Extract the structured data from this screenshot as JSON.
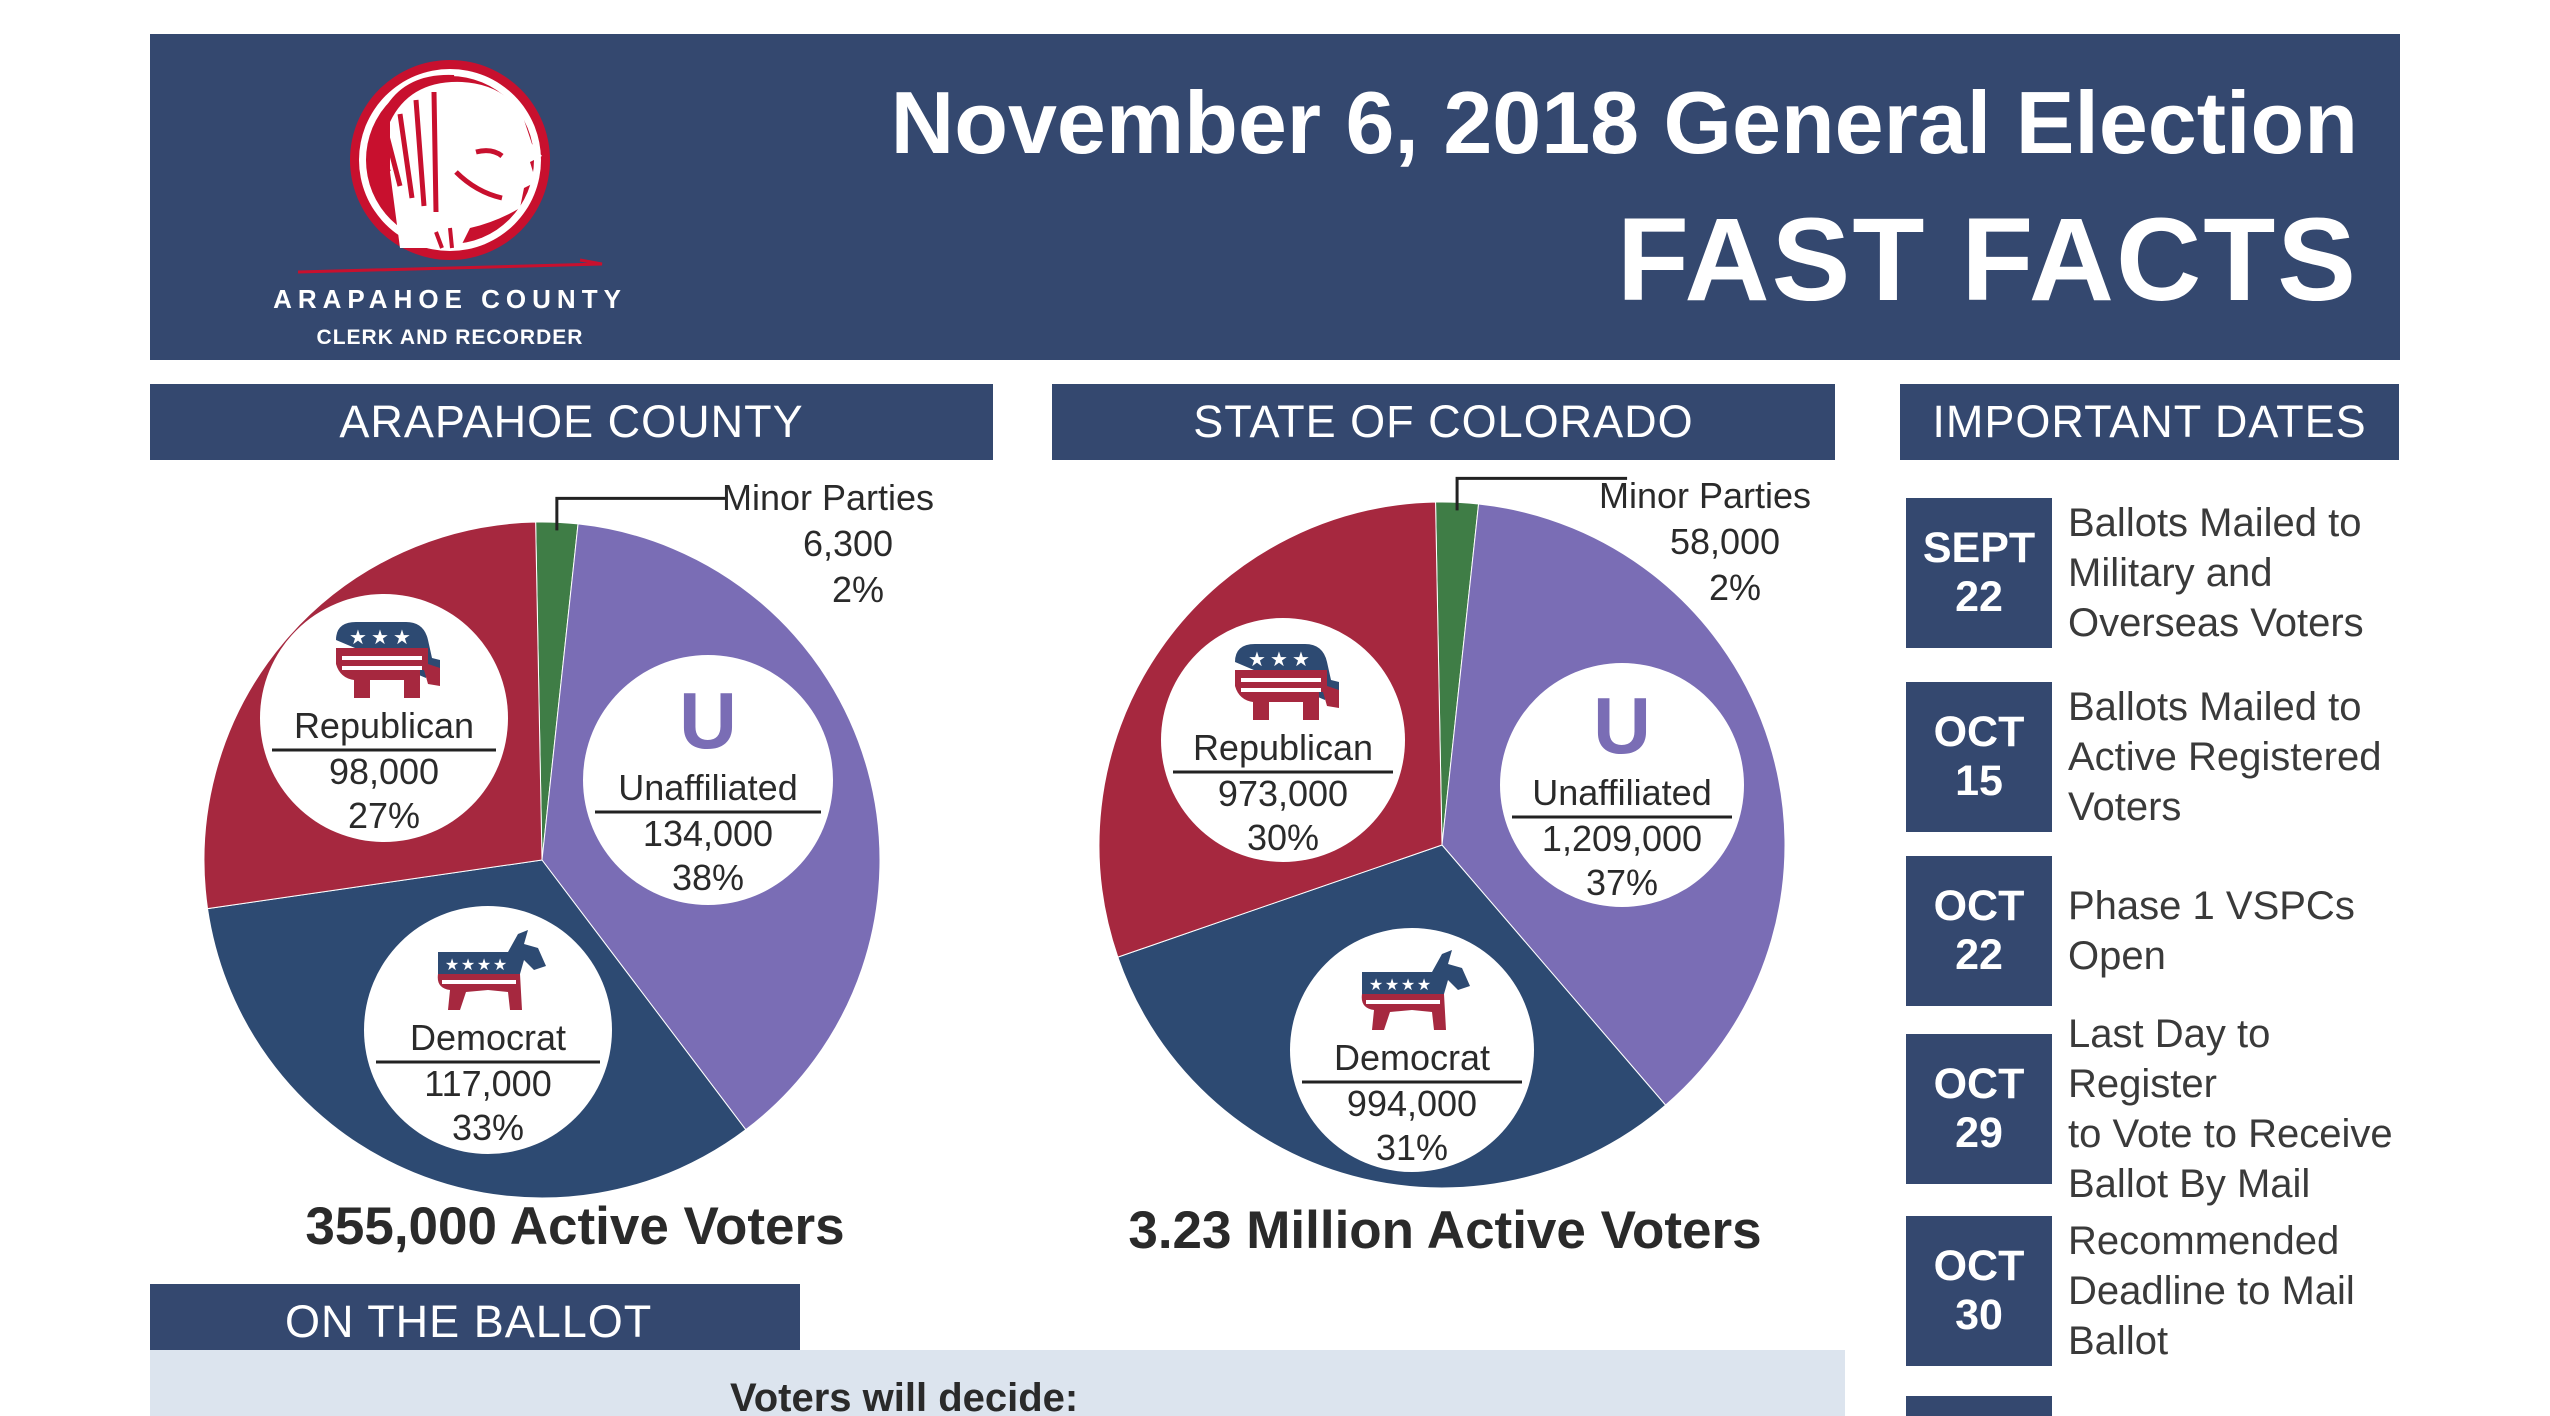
{
  "header": {
    "logo_county": "ARAPAHOE COUNTY",
    "logo_subtitle": "CLERK AND RECORDER",
    "title_line1": "November 6, 2018 General Election",
    "title_line2": "FAST FACTS"
  },
  "colors": {
    "navy": "#34486f",
    "republican": "#a6283f",
    "democrat": "#2d4a72",
    "unaffiliated": "#7a6db5",
    "minor": "#3f7d46",
    "logo_red": "#c8102e",
    "ballot_panel": "#dce4ee"
  },
  "sections": {
    "county_header": "ARAPAHOE COUNTY",
    "state_header": "STATE OF COLORADO",
    "dates_header": "IMPORTANT DATES",
    "ballot_header": "ON THE BALLOT"
  },
  "chart_data": [
    {
      "type": "pie",
      "title": "ARAPAHOE COUNTY",
      "categories": [
        "Unaffiliated",
        "Democrat",
        "Republican",
        "Minor Parties"
      ],
      "values": [
        134000,
        117000,
        98000,
        6300
      ],
      "value_labels": [
        "134,000",
        "117,000",
        "98,000",
        "6,300"
      ],
      "percents": [
        "38%",
        "33%",
        "27%",
        "2%"
      ],
      "shares": [
        0.38,
        0.33,
        0.27,
        0.02
      ],
      "colors": [
        "#7a6db5",
        "#2d4a72",
        "#a6283f",
        "#3f7d46"
      ],
      "total_label": "355,000 Active Voters"
    },
    {
      "type": "pie",
      "title": "STATE OF COLORADO",
      "categories": [
        "Unaffiliated",
        "Democrat",
        "Republican",
        "Minor Parties"
      ],
      "values": [
        1209000,
        994000,
        973000,
        58000
      ],
      "value_labels": [
        "1,209,000",
        "994,000",
        "973,000",
        "58,000"
      ],
      "percents": [
        "37%",
        "31%",
        "30%",
        "2%"
      ],
      "shares": [
        0.37,
        0.31,
        0.3,
        0.02
      ],
      "colors": [
        "#7a6db5",
        "#2d4a72",
        "#a6283f",
        "#3f7d46"
      ],
      "total_label": "3.23 Million Active Voters"
    }
  ],
  "unaffiliated_letter": "U",
  "important_dates": [
    {
      "month": "SEPT",
      "day": "22",
      "lines": [
        "Ballots Mailed to",
        "Military and",
        "Overseas Voters"
      ]
    },
    {
      "month": "OCT",
      "day": "15",
      "lines": [
        "Ballots Mailed to",
        "Active Registered",
        "Voters"
      ]
    },
    {
      "month": "OCT",
      "day": "22",
      "lines": [
        "Phase 1 VSPCs",
        "Open"
      ]
    },
    {
      "month": "OCT",
      "day": "29",
      "lines": [
        "Last Day to Register",
        "to Vote to Receive",
        "Ballot By Mail"
      ]
    },
    {
      "month": "OCT",
      "day": "30",
      "lines": [
        "Recommended",
        "Deadline to Mail",
        "Ballot"
      ]
    }
  ],
  "ballot": {
    "lead_text": "Voters will decide:"
  }
}
